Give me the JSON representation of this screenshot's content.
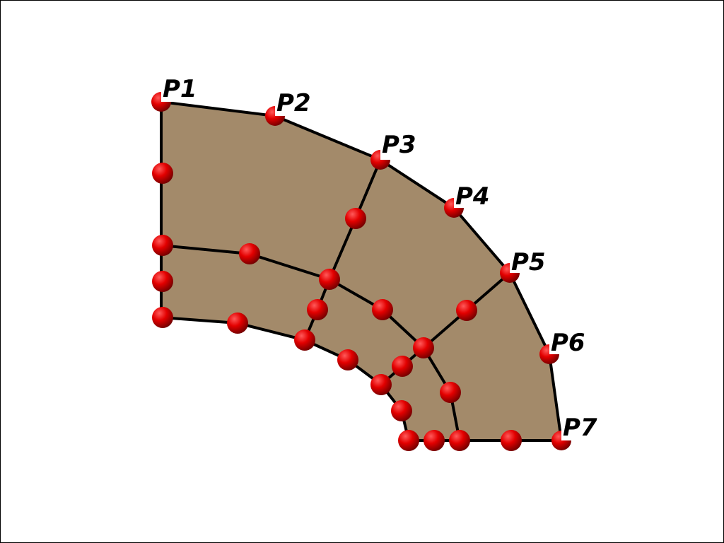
{
  "colors": {
    "fill": "#a38a6a",
    "edge": "#000000",
    "node": "#e30000",
    "node_dark": "#7a0000",
    "label": "#000000"
  },
  "labels": {
    "p1": "P1",
    "p2": "P2",
    "p3": "P3",
    "p4": "P4",
    "p5": "P5",
    "p6": "P6",
    "p7": "P7"
  }
}
